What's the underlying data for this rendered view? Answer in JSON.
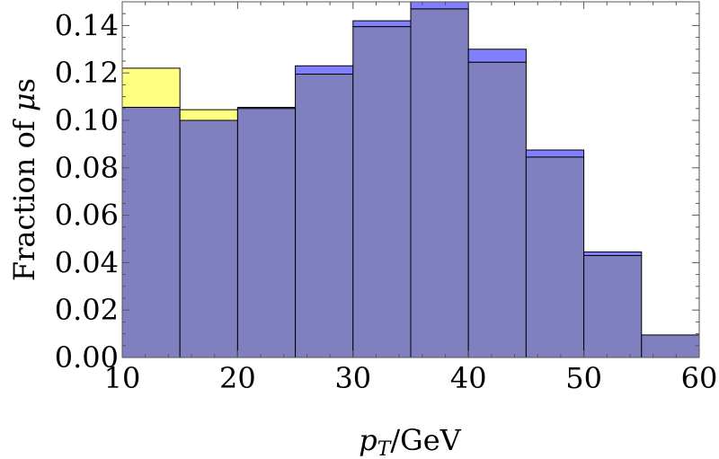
{
  "chart_data": {
    "type": "bar",
    "title": "",
    "xlabel_var": "p",
    "xlabel_sub": "T",
    "xlabel_unit": "/GeV",
    "ylabel_text": "Fraction of ",
    "ylabel_symbol": "μ",
    "ylabel_suffix": "s",
    "xlim": [
      10,
      60
    ],
    "ylim": [
      0,
      0.15
    ],
    "x_ticks": [
      "10",
      "20",
      "30",
      "40",
      "50",
      "60"
    ],
    "y_ticks": [
      "0.00",
      "0.02",
      "0.04",
      "0.06",
      "0.08",
      "0.10",
      "0.12",
      "0.14"
    ],
    "bin_edges": [
      10,
      15,
      20,
      25,
      30,
      35,
      40,
      45,
      50,
      55,
      60
    ],
    "grid": false,
    "series": [
      {
        "name": "yellow",
        "color": "#ffff80",
        "values": [
          0.122,
          0.1045,
          0.105,
          0.1195,
          0.1395,
          0.147,
          0.1245,
          0.0845,
          0.043,
          0.0095
        ]
      },
      {
        "name": "blue",
        "color": "#8080ff",
        "values": [
          0.1055,
          0.1,
          0.1055,
          0.123,
          0.142,
          0.15,
          0.13,
          0.0875,
          0.0445,
          0.0095
        ]
      }
    ],
    "overlap_color": "#8080c0"
  }
}
